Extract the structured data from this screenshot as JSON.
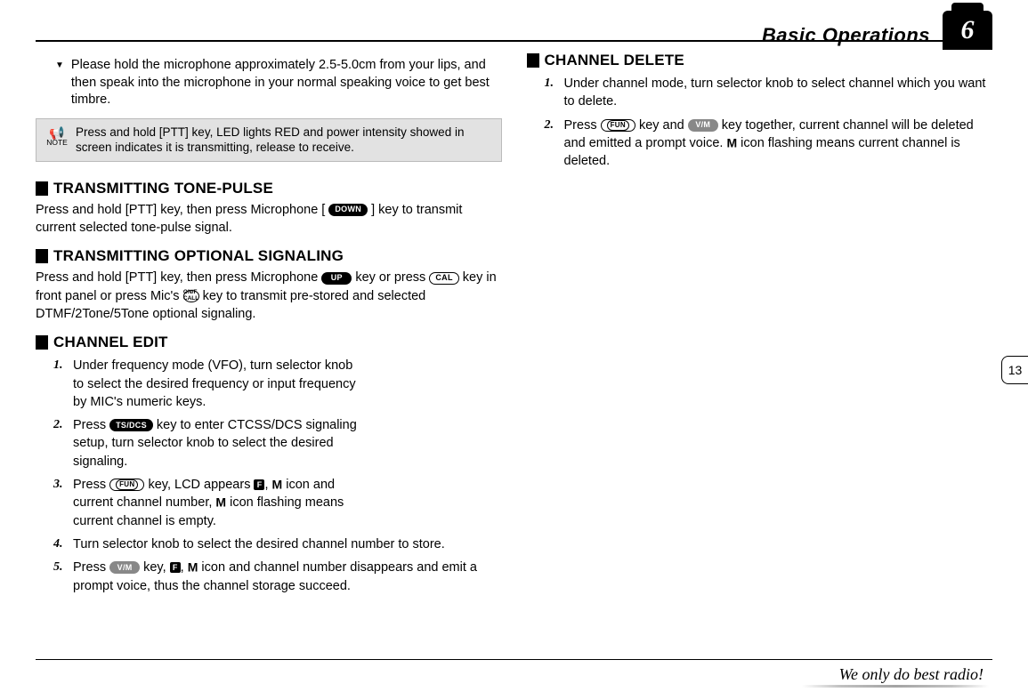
{
  "header": {
    "title": "Basic Operations",
    "chapter": "6"
  },
  "page_number": "13",
  "footer_tagline": "We only do best radio!",
  "left": {
    "intro_bullet": "Please hold the microphone approximately 2.5-5.0cm from your lips, and then speak into the microphone in your normal speaking voice to get best timbre.",
    "note_label": "NOTE",
    "note_text": "Press and hold [PTT] key, LED lights RED and power intensity showed in screen indicates it is transmitting, release to receive.",
    "sec1": {
      "title": "TRANSMITTING TONE-PULSE",
      "text_a": "Press and hold [PTT] key, then press Microphone [ ",
      "key1": "DOWN",
      "text_b": " ] key to transmit current selected tone-pulse signal."
    },
    "sec2": {
      "title": "TRANSMITTING OPTIONAL SIGNALING",
      "text_a": "Press and hold [PTT] key, then press Microphone ",
      "key_up": "UP",
      "text_b": " key or press ",
      "key_cal": "CAL",
      "text_c": " key in front panel or press Mic's ",
      "key_onf": "ON/F CALL",
      "text_d": " key to transmit pre-stored and selected DTMF/2Tone/5Tone optional signaling."
    },
    "sec3": {
      "title": "CHANNEL EDIT",
      "steps": {
        "s1": "Under frequency mode (VFO), turn selector knob to select the desired frequency or input frequency by MIC's numeric keys.",
        "s2a": "Press ",
        "s2_key": "TS/DCS",
        "s2b": " key to enter CTCSS/DCS signaling setup, turn selector knob to select the desired signaling.",
        "s3a": "Press ",
        "s3_key": "FUN",
        "s3b": " key, LCD appears ",
        "s3c": ",  ",
        "s3d": " icon and current channel number, ",
        "s3e": " icon flashing means current channel is empty.",
        "s4": "Turn selector knob to select the desired channel number to store.",
        "s5a": "Press ",
        "s5_key": "V/M",
        "s5b": " key, ",
        "s5c": ", ",
        "s5d": " icon and channel number disappears and emit a prompt voice, thus the channel storage succeed."
      }
    }
  },
  "right": {
    "sec1": {
      "title": "CHANNEL DELETE",
      "steps": {
        "s1": "Under channel mode, turn selector knob to select channel which you want to delete.",
        "s2a": "Press ",
        "s2_key1": "FUN",
        "s2b": " key and ",
        "s2_key2": "V/M",
        "s2c": " key together, current channel will be deleted and emitted a prompt voice. ",
        "s2d": " icon flashing means current channel is deleted."
      }
    }
  },
  "icons": {
    "m": "M",
    "f": "F"
  }
}
